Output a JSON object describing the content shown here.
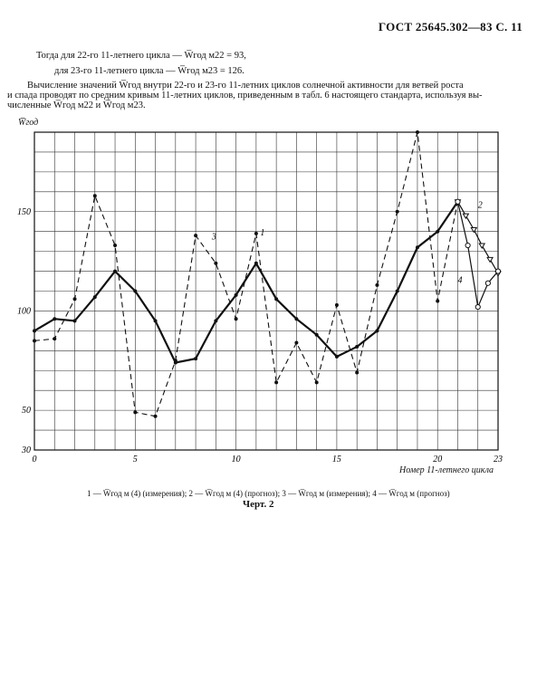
{
  "header": "ГОСТ 25645.302—83 С. 11",
  "text": {
    "line1": "Тогда для 22-го 11-летнего цикла — W̅год м22 = 93,",
    "line2": "для 23-го 11-летнего цикла — W̅год м23 = 126.",
    "line3": "Вычисление значений W̅год внутри 22-го и 23-го 11-летних циклов солнечной активности для ветвей роста",
    "line4": "и спада проводят по средним кривым 11-летних циклов, приведенным в табл. 6 настоящего стандарта, используя вы-",
    "line5": "численные W̅год м22 и W̅год м23."
  },
  "legend": "1 — W̅год м (4) (измерения); 2 — W̅год м (4) (прогноз); 3 — W̅год м (измерения); 4 — W̅год м (прогноз)",
  "figure_caption": "Черт. 2",
  "chart_data": {
    "type": "line",
    "ylabel": "W̅год",
    "xlabel": "Номер 11-летнего цикла",
    "xlim": [
      0,
      23
    ],
    "ylim": [
      30,
      190
    ],
    "x_ticks": [
      0,
      5,
      10,
      15,
      20,
      23
    ],
    "y_ticks": [
      30,
      50,
      100,
      150
    ],
    "series": [
      {
        "name": "1",
        "style": "solid-bold",
        "marker": "dot",
        "x": [
          0,
          1,
          2,
          3,
          4,
          5,
          6,
          7,
          8,
          9,
          10,
          11,
          12,
          13,
          14,
          15,
          16,
          17,
          18,
          19,
          20,
          21
        ],
        "y": [
          90,
          96,
          95,
          107,
          120,
          110,
          95,
          74,
          76,
          95,
          108,
          124,
          106,
          96,
          88,
          77,
          82,
          90,
          110,
          132,
          140,
          155
        ]
      },
      {
        "name": "2",
        "style": "solid",
        "marker": "triangle",
        "x": [
          21,
          21.4,
          21.8,
          22.2,
          22.6,
          23
        ],
        "y": [
          155,
          148,
          141,
          133,
          126,
          119
        ]
      },
      {
        "name": "3",
        "style": "dashed",
        "marker": "dot",
        "x": [
          0,
          1,
          2,
          3,
          4,
          5,
          6,
          7,
          8,
          9,
          10,
          11,
          12,
          13,
          14,
          15,
          16,
          17,
          18,
          19,
          20,
          21
        ],
        "y": [
          85,
          86,
          106,
          158,
          133,
          49,
          47,
          75,
          138,
          124,
          96,
          139,
          64,
          84,
          64,
          103,
          69,
          113,
          150,
          190,
          105,
          155
        ]
      },
      {
        "name": "4",
        "style": "solid",
        "marker": "circle",
        "x": [
          21,
          21.5,
          22,
          22.5,
          23
        ],
        "y": [
          155,
          133,
          102,
          114,
          120
        ]
      }
    ],
    "annotations": [
      "1",
      "2",
      "3",
      "4"
    ],
    "grid": true
  }
}
